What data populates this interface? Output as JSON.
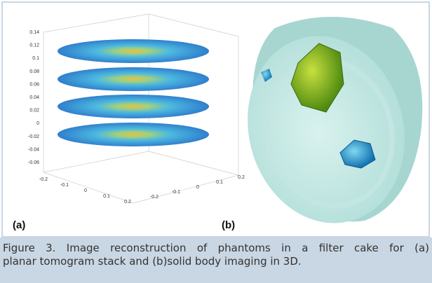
{
  "figure": {
    "panel_a": {
      "label": "(a)",
      "z_ticks": [
        "0.14",
        "0.12",
        "0.1",
        "0.08",
        "0.06",
        "0.04",
        "0.02",
        "0",
        "-0.02",
        "-0.04",
        "-0.06"
      ],
      "x_ticks": [
        "-0.2",
        "-0.1",
        "0",
        "0.1",
        "0.2"
      ],
      "y_ticks": [
        "-0.2",
        "-0.1",
        "0",
        "0.1",
        "0.2"
      ]
    },
    "panel_b": {
      "label": "(b)"
    },
    "caption": [
      "Figure 3. Image reconstruction of phantoms in a filter cake for (a)",
      "planar tomogram stack and (b)solid body imaging in 3D."
    ]
  }
}
